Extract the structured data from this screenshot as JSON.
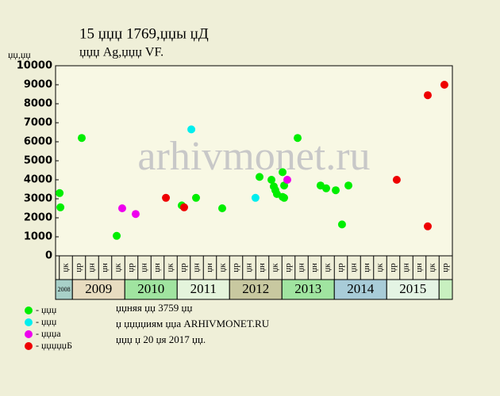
{
  "chart_data": {
    "type": "scatter",
    "title": "15 џџџ 1769,џџы џД",
    "subtitle": "џџџ Ag,џџџ VF.",
    "y_label": "џџ,џџ",
    "watermark": "arhivmonet.ru",
    "ylim": [
      0,
      10000
    ],
    "yticks": [
      0,
      1000,
      2000,
      3000,
      4000,
      5000,
      6000,
      7000,
      8000,
      9000,
      10000
    ],
    "xlim": [
      -0.79,
      29.52
    ],
    "categories": [
      "џк",
      "џр",
      "џн",
      "џн",
      "џк",
      "џр",
      "џн",
      "џн",
      "џк",
      "џр",
      "џн",
      "џн",
      "џк",
      "џр",
      "џн",
      "џн",
      "џк",
      "џр",
      "џн",
      "џн",
      "џк",
      "џр",
      "џн",
      "џн",
      "џк",
      "џр",
      "џн",
      "џн",
      "џк",
      "џр"
    ],
    "years": [
      "2008",
      "2009",
      "2010",
      "2011",
      "2012",
      "2013",
      "2014",
      "2015"
    ],
    "series": [
      {
        "name": "- џџџ",
        "color": "#00ee00",
        "x": [
          -0.48,
          -0.42,
          1.21,
          3.88,
          8.85,
          9.94,
          11.94,
          14.79,
          15.7,
          15.88,
          16.0,
          16.12,
          16.55,
          16.67,
          16.55,
          16.67,
          17.7,
          19.45,
          19.88,
          20.61,
          21.09,
          21.58
        ],
        "values": [
          3300,
          2550,
          6200,
          1050,
          2650,
          3050,
          2500,
          4150,
          4000,
          3650,
          3450,
          3250,
          4400,
          3700,
          3100,
          3050,
          6200,
          3700,
          3550,
          3450,
          1650,
          3700
        ]
      },
      {
        "name": "- џџџ",
        "color": "#00eeee",
        "x": [
          9.58,
          14.48
        ],
        "values": [
          6650,
          3050
        ]
      },
      {
        "name": "- џџџа",
        "color": "#ee00ee",
        "x": [
          4.3,
          5.33,
          16.91
        ],
        "values": [
          2500,
          2200,
          4000
        ]
      },
      {
        "name": "- џџџџџБ",
        "color": "#ee0000",
        "x": [
          7.64,
          9.03,
          25.27,
          27.64,
          27.64,
          28.91
        ],
        "values": [
          3050,
          2550,
          4000,
          8450,
          1550,
          9000
        ]
      }
    ],
    "notes": [
      "џџняя џџ 3759 џџ",
      "џ џџџџиям џџа ARHIVMONET.RU",
      "џџџ џ 20 џя 2017 џџ."
    ]
  }
}
